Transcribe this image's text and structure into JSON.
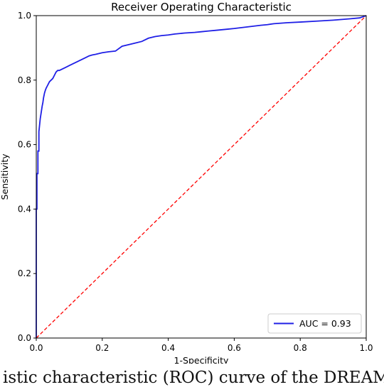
{
  "chart_data": {
    "type": "line",
    "title": "Receiver Operating Characteristic",
    "xlabel": "1-Specificity",
    "ylabel": "Sensitivity",
    "xlim": [
      0,
      1
    ],
    "ylim": [
      0,
      1
    ],
    "xticks": [
      "0.0",
      "0.2",
      "0.4",
      "0.6",
      "0.8",
      "1.0"
    ],
    "yticks": [
      "0.0",
      "0.2",
      "0.4",
      "0.6",
      "0.8",
      "1.0"
    ],
    "legend_position": "lower-right",
    "grid": false,
    "series": [
      {
        "name": "AUC = 0.93",
        "color": "#1f1fe6",
        "style": "solid",
        "x": [
          0.0,
          0.0,
          0.002,
          0.002,
          0.005,
          0.005,
          0.008,
          0.008,
          0.01,
          0.012,
          0.015,
          0.018,
          0.02,
          0.022,
          0.025,
          0.028,
          0.03,
          0.035,
          0.04,
          0.045,
          0.05,
          0.055,
          0.06,
          0.065,
          0.07,
          0.08,
          0.09,
          0.1,
          0.11,
          0.12,
          0.13,
          0.14,
          0.15,
          0.16,
          0.17,
          0.18,
          0.2,
          0.22,
          0.24,
          0.26,
          0.28,
          0.3,
          0.32,
          0.34,
          0.36,
          0.38,
          0.4,
          0.42,
          0.45,
          0.48,
          0.5,
          0.52,
          0.55,
          0.58,
          0.6,
          0.64,
          0.68,
          0.7,
          0.72,
          0.76,
          0.8,
          0.85,
          0.9,
          0.95,
          0.98,
          1.0
        ],
        "y": [
          0.0,
          0.4,
          0.4,
          0.51,
          0.51,
          0.58,
          0.58,
          0.64,
          0.66,
          0.68,
          0.7,
          0.72,
          0.73,
          0.745,
          0.76,
          0.77,
          0.775,
          0.785,
          0.795,
          0.8,
          0.805,
          0.815,
          0.825,
          0.83,
          0.83,
          0.835,
          0.84,
          0.845,
          0.85,
          0.855,
          0.86,
          0.865,
          0.87,
          0.875,
          0.878,
          0.88,
          0.885,
          0.888,
          0.89,
          0.905,
          0.91,
          0.915,
          0.92,
          0.93,
          0.935,
          0.938,
          0.94,
          0.943,
          0.946,
          0.948,
          0.95,
          0.952,
          0.955,
          0.958,
          0.96,
          0.965,
          0.97,
          0.972,
          0.975,
          0.978,
          0.98,
          0.983,
          0.986,
          0.99,
          0.993,
          1.0
        ]
      },
      {
        "name": "",
        "color": "#ff0000",
        "style": "dashed",
        "x": [
          0,
          1
        ],
        "y": [
          0,
          1
        ]
      }
    ]
  },
  "caption": {
    "text": "istic characteristic (ROC) curve of the DREAM"
  }
}
